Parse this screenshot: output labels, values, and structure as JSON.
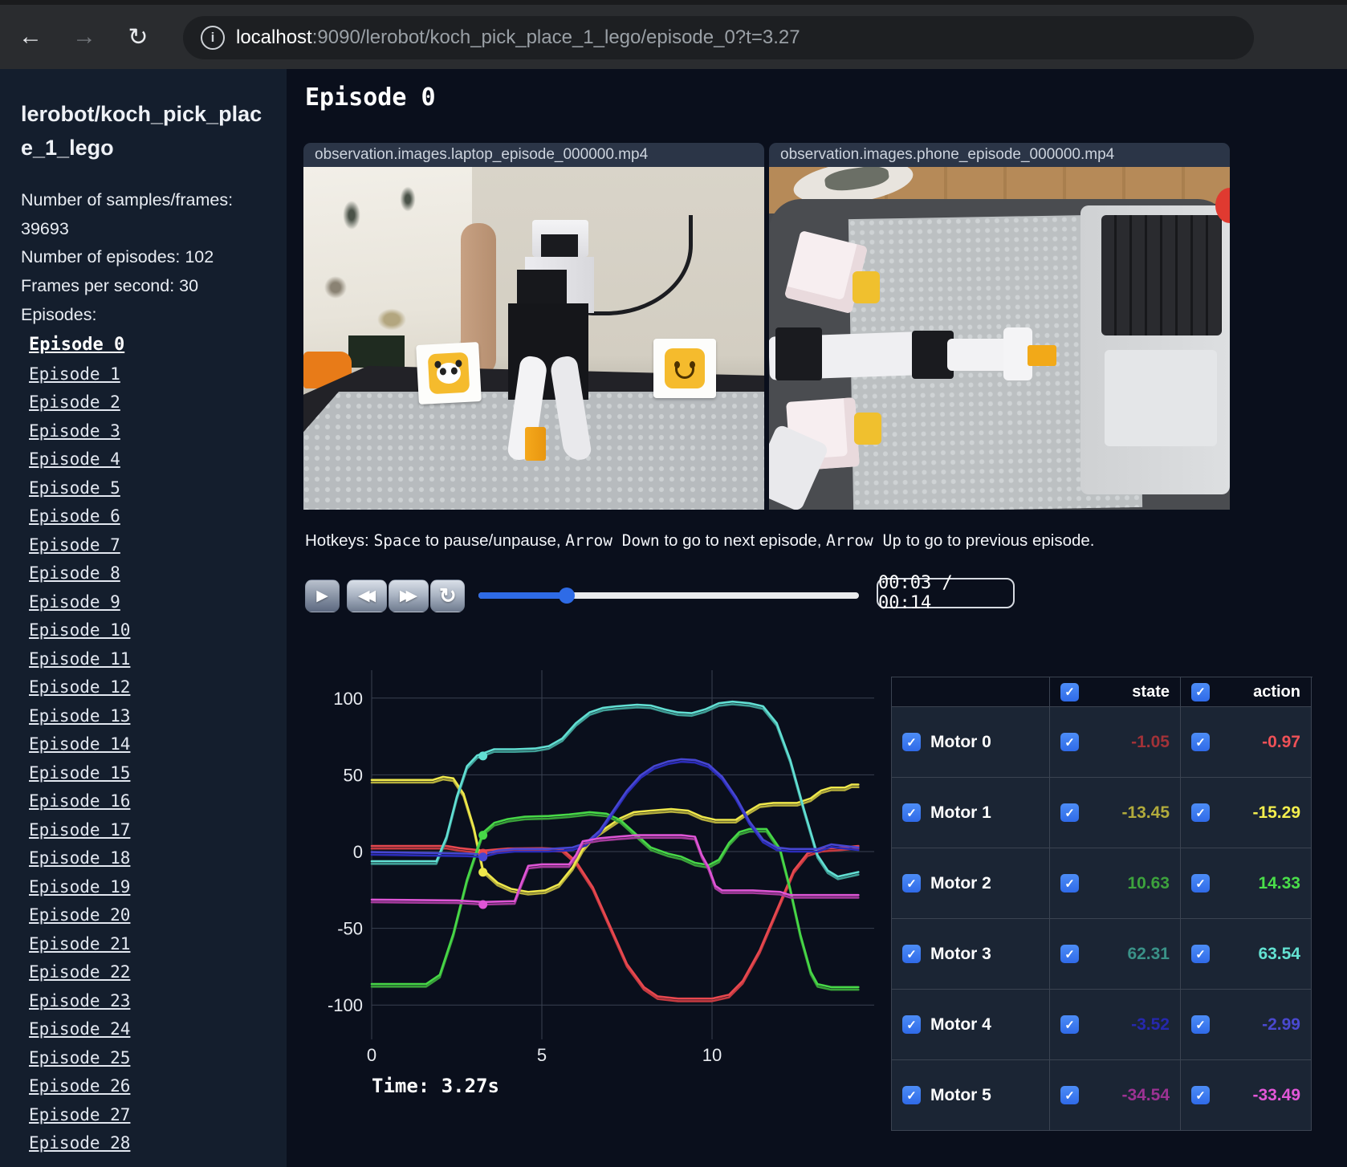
{
  "browser": {
    "url_host": "localhost",
    "url_rest": ":9090/lerobot/koch_pick_place_1_lego/episode_0?t=3.27",
    "icons": {
      "back": "←",
      "forward": "→",
      "reload": "↻",
      "info": "i"
    }
  },
  "sidebar": {
    "title": "lerobot/koch_pick_place_1_lego",
    "info_line_1": "Number of samples/frames: 39693",
    "info_line_2": "Number of episodes: 102",
    "info_line_3": "Frames per second: 30",
    "episodes_label": "Episodes:",
    "active_episode": "Episode 0",
    "episodes": [
      "Episode 0",
      "Episode 1",
      "Episode 2",
      "Episode 3",
      "Episode 4",
      "Episode 5",
      "Episode 6",
      "Episode 7",
      "Episode 8",
      "Episode 9",
      "Episode 10",
      "Episode 11",
      "Episode 12",
      "Episode 13",
      "Episode 14",
      "Episode 15",
      "Episode 16",
      "Episode 17",
      "Episode 18",
      "Episode 19",
      "Episode 20",
      "Episode 21",
      "Episode 22",
      "Episode 23",
      "Episode 24",
      "Episode 25",
      "Episode 26",
      "Episode 27",
      "Episode 28"
    ]
  },
  "main": {
    "title": "Episode 0",
    "videos": [
      {
        "label": "observation.images.laptop_episode_000000.mp4"
      },
      {
        "label": "observation.images.phone_episode_000000.mp4"
      }
    ],
    "hotkeys": {
      "prefix": "Hotkeys: ",
      "key1": "Space",
      "mid1": " to pause/unpause, ",
      "key2": "Arrow Down",
      "mid2": " to go to next episode, ",
      "key3": "Arrow Up",
      "mid3": " to go to previous episode."
    },
    "controls": {
      "play_icon": "▶",
      "rewind_icon": "◀◀",
      "fast_forward_icon": "▶▶",
      "loop_icon": "↺",
      "progress_pct": 23.2,
      "time_display": "00:03 / 00:14"
    },
    "time_label": "Time: 3.27s"
  },
  "table": {
    "header_state": "state",
    "header_action": "action",
    "rows": [
      {
        "name": "Motor 0",
        "state": "-1.05",
        "action": "-0.97",
        "state_color": "#a23238",
        "action_color": "#ef5157"
      },
      {
        "name": "Motor 1",
        "state": "-13.45",
        "action": "-15.29",
        "state_color": "#b2ab3c",
        "action_color": "#f3ee4e"
      },
      {
        "name": "Motor 2",
        "state": "10.63",
        "action": "14.33",
        "state_color": "#3da23d",
        "action_color": "#4ade4a"
      },
      {
        "name": "Motor 3",
        "state": "62.31",
        "action": "63.54",
        "state_color": "#3a9288",
        "action_color": "#63e2d2"
      },
      {
        "name": "Motor 4",
        "state": "-3.52",
        "action": "-2.99",
        "state_color": "#2628ae",
        "action_color": "#4a49d0"
      },
      {
        "name": "Motor 5",
        "state": "-34.54",
        "action": "-33.49",
        "state_color": "#9c3293",
        "action_color": "#e257d8"
      }
    ]
  },
  "chart_data": {
    "type": "line",
    "xlabel": "",
    "ylabel": "",
    "x_ticks": [
      0,
      5,
      10
    ],
    "y_ticks": [
      100,
      50,
      0,
      -50,
      -100
    ],
    "xlim": [
      -0.2,
      14.9
    ],
    "ylim": [
      -122,
      112
    ],
    "grid": true,
    "t_current": 3.27,
    "series": [
      {
        "name": "Motor 0",
        "state_color": "#c43a40",
        "action_color": "#e8484f",
        "marker": -1.05,
        "points": [
          [
            0,
            2
          ],
          [
            2.2,
            2
          ],
          [
            2.6,
            0.5
          ],
          [
            3.27,
            -1.05
          ],
          [
            4,
            0.3
          ],
          [
            5,
            0.5
          ],
          [
            5.6,
            0
          ],
          [
            6,
            -8
          ],
          [
            6.5,
            -25
          ],
          [
            7,
            -50
          ],
          [
            7.5,
            -75
          ],
          [
            8,
            -90
          ],
          [
            8.4,
            -96
          ],
          [
            9,
            -97.5
          ],
          [
            10,
            -97.5
          ],
          [
            10.5,
            -95
          ],
          [
            10.9,
            -86
          ],
          [
            11.4,
            -66
          ],
          [
            11.9,
            -40
          ],
          [
            12.4,
            -14
          ],
          [
            12.8,
            -3
          ],
          [
            13.2,
            0
          ],
          [
            13.8,
            1
          ],
          [
            14.3,
            2
          ]
        ]
      },
      {
        "name": "Motor 1",
        "state_color": "#b5ae3c",
        "action_color": "#efe84b",
        "marker": -13.45,
        "points": [
          [
            0,
            45
          ],
          [
            1.8,
            45
          ],
          [
            2.1,
            47
          ],
          [
            2.4,
            46
          ],
          [
            2.7,
            36
          ],
          [
            3,
            14
          ],
          [
            3.27,
            -13.45
          ],
          [
            3.7,
            -22
          ],
          [
            4.1,
            -26
          ],
          [
            4.6,
            -28
          ],
          [
            5.1,
            -27
          ],
          [
            5.5,
            -23
          ],
          [
            5.9,
            -12
          ],
          [
            6.2,
            0
          ],
          [
            6.5,
            8
          ],
          [
            6.9,
            14
          ],
          [
            7.3,
            20
          ],
          [
            7.7,
            24
          ],
          [
            8.2,
            25
          ],
          [
            8.8,
            26
          ],
          [
            9.3,
            25
          ],
          [
            9.7,
            21
          ],
          [
            10.1,
            19
          ],
          [
            10.7,
            19
          ],
          [
            11.1,
            25
          ],
          [
            11.4,
            29
          ],
          [
            11.8,
            30
          ],
          [
            12.5,
            30
          ],
          [
            12.9,
            33
          ],
          [
            13.2,
            38
          ],
          [
            13.5,
            40
          ],
          [
            13.9,
            40
          ],
          [
            14.1,
            42
          ],
          [
            14.3,
            42
          ]
        ]
      },
      {
        "name": "Motor 2",
        "state_color": "#39a039",
        "action_color": "#47d847",
        "marker": 10.63,
        "points": [
          [
            0,
            -88
          ],
          [
            1.6,
            -88
          ],
          [
            2,
            -82
          ],
          [
            2.4,
            -55
          ],
          [
            2.8,
            -20
          ],
          [
            3.1,
            0
          ],
          [
            3.27,
            10.63
          ],
          [
            3.6,
            17
          ],
          [
            4,
            19.5
          ],
          [
            4.5,
            21
          ],
          [
            5.2,
            21.5
          ],
          [
            5.8,
            22.5
          ],
          [
            6.4,
            24
          ],
          [
            6.9,
            23
          ],
          [
            7.3,
            19
          ],
          [
            7.8,
            9
          ],
          [
            8.2,
            1
          ],
          [
            8.7,
            -3
          ],
          [
            9.1,
            -5
          ],
          [
            9.5,
            -9
          ],
          [
            9.9,
            -10.5
          ],
          [
            10.2,
            -7
          ],
          [
            10.5,
            4
          ],
          [
            10.8,
            11
          ],
          [
            11.1,
            13
          ],
          [
            11.6,
            13
          ],
          [
            12,
            0
          ],
          [
            12.3,
            -26
          ],
          [
            12.6,
            -56
          ],
          [
            12.9,
            -80
          ],
          [
            13.1,
            -88
          ],
          [
            13.5,
            -90
          ],
          [
            14.3,
            -90
          ]
        ]
      },
      {
        "name": "Motor 3",
        "state_color": "#3f9e96",
        "action_color": "#62dfd3",
        "marker": 62.31,
        "points": [
          [
            0,
            -8
          ],
          [
            1.9,
            -8
          ],
          [
            2.2,
            8
          ],
          [
            2.5,
            34
          ],
          [
            2.8,
            54
          ],
          [
            3.1,
            61
          ],
          [
            3.27,
            62.31
          ],
          [
            3.6,
            65
          ],
          [
            4.2,
            65
          ],
          [
            4.8,
            65.5
          ],
          [
            5.2,
            67
          ],
          [
            5.6,
            72
          ],
          [
            6,
            82
          ],
          [
            6.4,
            89
          ],
          [
            6.8,
            92
          ],
          [
            7.2,
            93
          ],
          [
            7.8,
            94
          ],
          [
            8.2,
            93.5
          ],
          [
            8.6,
            91
          ],
          [
            9,
            89
          ],
          [
            9.4,
            88.5
          ],
          [
            9.8,
            91
          ],
          [
            10.2,
            95
          ],
          [
            10.6,
            96
          ],
          [
            11.1,
            95
          ],
          [
            11.5,
            93
          ],
          [
            11.9,
            82
          ],
          [
            12.3,
            58
          ],
          [
            12.7,
            26
          ],
          [
            13.1,
            -4
          ],
          [
            13.4,
            -14
          ],
          [
            13.7,
            -18
          ],
          [
            14.1,
            -16
          ],
          [
            14.3,
            -15
          ]
        ]
      },
      {
        "name": "Motor 4",
        "state_color": "#2b2cb8",
        "action_color": "#4646d2",
        "marker": -3.52,
        "points": [
          [
            0,
            -2
          ],
          [
            2.8,
            -3
          ],
          [
            3.27,
            -3.52
          ],
          [
            3.7,
            -1
          ],
          [
            4.2,
            0
          ],
          [
            5.2,
            0
          ],
          [
            5.9,
            1
          ],
          [
            6.3,
            4
          ],
          [
            6.7,
            12
          ],
          [
            7.1,
            25
          ],
          [
            7.5,
            38
          ],
          [
            7.9,
            48
          ],
          [
            8.3,
            54
          ],
          [
            8.7,
            57
          ],
          [
            9.1,
            58.5
          ],
          [
            9.5,
            58
          ],
          [
            9.9,
            55
          ],
          [
            10.3,
            47
          ],
          [
            10.7,
            34
          ],
          [
            11.1,
            18
          ],
          [
            11.5,
            6
          ],
          [
            11.9,
            1
          ],
          [
            12.3,
            0
          ],
          [
            13.1,
            0
          ],
          [
            13.5,
            3
          ],
          [
            13.9,
            2
          ],
          [
            14.3,
            1
          ]
        ]
      },
      {
        "name": "Motor 5",
        "state_color": "#a33a9b",
        "action_color": "#df55d6",
        "marker": -34.54,
        "points": [
          [
            0,
            -33
          ],
          [
            2.5,
            -33.5
          ],
          [
            3.27,
            -34.54
          ],
          [
            4.2,
            -34
          ],
          [
            4.4,
            -22
          ],
          [
            4.6,
            -11
          ],
          [
            5,
            -10
          ],
          [
            5.8,
            -10
          ],
          [
            6,
            -4
          ],
          [
            6.2,
            5
          ],
          [
            6.7,
            7
          ],
          [
            7.2,
            8
          ],
          [
            7.8,
            9
          ],
          [
            8.5,
            9
          ],
          [
            9.1,
            9
          ],
          [
            9.5,
            8
          ],
          [
            9.7,
            -4
          ],
          [
            9.9,
            -12
          ],
          [
            10.1,
            -24
          ],
          [
            10.3,
            -27
          ],
          [
            11.2,
            -27
          ],
          [
            12,
            -28
          ],
          [
            12.3,
            -30
          ],
          [
            13.2,
            -30
          ],
          [
            14.3,
            -30
          ]
        ]
      }
    ]
  }
}
